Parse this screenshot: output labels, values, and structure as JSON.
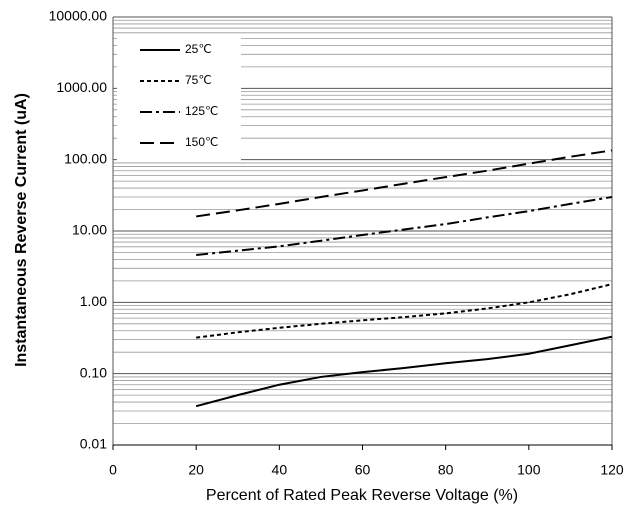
{
  "chart_data": {
    "type": "line",
    "log_scale_y": true,
    "grid": true,
    "minor_grid": true,
    "legend_position": "upper-left",
    "xlabel": "Percent of  Rated Peak Reverse Voltage (%)",
    "ylabel": "Instantaneous Reverse Current (uA)",
    "x": [
      20,
      30,
      40,
      50,
      60,
      70,
      80,
      90,
      100,
      110,
      120
    ],
    "xlim": [
      0,
      120
    ],
    "xticks": [
      0,
      20,
      40,
      60,
      80,
      100,
      120
    ],
    "ylim": [
      0.01,
      10000
    ],
    "yticks": [
      {
        "value": 10000,
        "label": "10000.00"
      },
      {
        "value": 1000,
        "label": "1000.00"
      },
      {
        "value": 100,
        "label": "100.00"
      },
      {
        "value": 10,
        "label": "10.00"
      },
      {
        "value": 1,
        "label": "1.00"
      },
      {
        "value": 0.1,
        "label": "0.10"
      },
      {
        "value": 0.01,
        "label": "0.01"
      }
    ],
    "series": [
      {
        "name": "25℃",
        "color": "#000000",
        "dash": "none",
        "values": [
          0.035,
          0.05,
          0.07,
          0.09,
          0.105,
          0.12,
          0.14,
          0.16,
          0.19,
          0.25,
          0.33
        ]
      },
      {
        "name": "75℃",
        "color": "#000000",
        "dash": "4,3",
        "values": [
          0.32,
          0.38,
          0.44,
          0.5,
          0.56,
          0.62,
          0.7,
          0.82,
          1.0,
          1.3,
          1.8
        ]
      },
      {
        "name": "125℃",
        "color": "#000000",
        "dash": "12,4,3,4",
        "values": [
          4.6,
          5.3,
          6.1,
          7.3,
          8.8,
          10.5,
          12.5,
          15.5,
          19,
          24,
          30
        ]
      },
      {
        "name": "150℃",
        "color": "#000000",
        "dash": "14,6",
        "values": [
          16,
          19.5,
          24,
          30,
          37,
          46,
          57,
          70,
          88,
          110,
          135
        ]
      }
    ]
  }
}
